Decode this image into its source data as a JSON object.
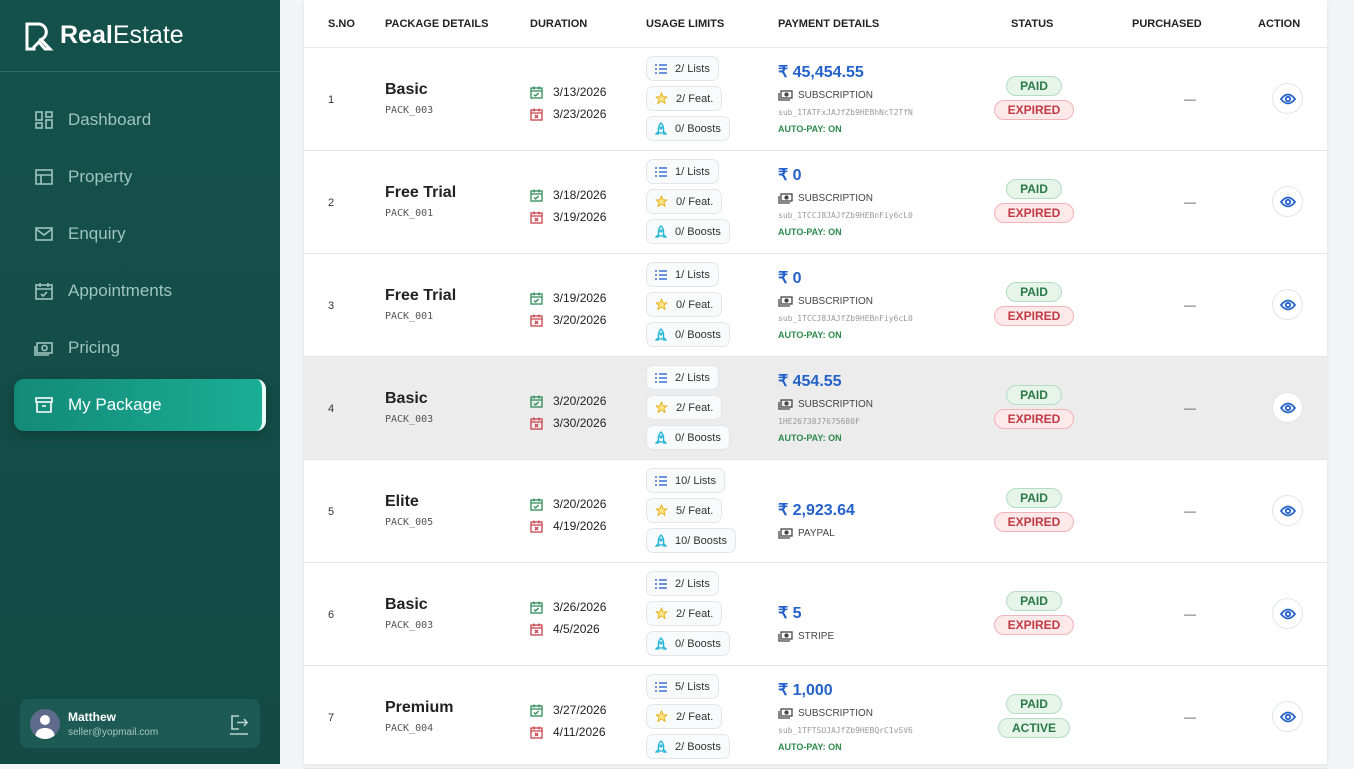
{
  "app": {
    "logo_bold": "Real",
    "logo_light": "Estate"
  },
  "sidebar": {
    "items": [
      {
        "label": "Dashboard",
        "icon": "dashboard-icon"
      },
      {
        "label": "Property",
        "icon": "property-icon"
      },
      {
        "label": "Enquiry",
        "icon": "mail-icon"
      },
      {
        "label": "Appointments",
        "icon": "calendar-icon"
      },
      {
        "label": "Pricing",
        "icon": "money-icon"
      },
      {
        "label": "My Package",
        "icon": "package-icon",
        "active": true
      }
    ]
  },
  "user": {
    "name": "Matthew",
    "email": "seller@yopmail.com"
  },
  "table": {
    "headers": [
      "S.NO",
      "PACKAGE DETAILS",
      "DURATION",
      "USAGE LIMITS",
      "PAYMENT DETAILS",
      "STATUS",
      "PURCHASED",
      "ACTION"
    ],
    "rows": [
      {
        "sno": "1",
        "name": "Basic",
        "code": "PACK_003",
        "start": "3/13/2026",
        "end": "3/23/2026",
        "lists": "2/ Lists",
        "feat": "2/ Feat.",
        "boosts": "0/ Boosts",
        "amount": "₹ 45,454.55",
        "method": "SUBSCRIPTION",
        "txn": "sub_1TATFxJAJfZb9HEBhNcT2TfN",
        "autopay": "AUTO-PAY: ON",
        "pay_status": "PAID",
        "status": "EXPIRED",
        "purchased": "—"
      },
      {
        "sno": "2",
        "name": "Free Trial",
        "code": "PACK_001",
        "start": "3/18/2026",
        "end": "3/19/2026",
        "lists": "1/ Lists",
        "feat": "0/ Feat.",
        "boosts": "0/ Boosts",
        "amount": "₹ 0",
        "method": "SUBSCRIPTION",
        "txn": "sub_1TCCJ8JAJfZb9HEBnFiy6cL0",
        "autopay": "AUTO-PAY: ON",
        "pay_status": "PAID",
        "status": "EXPIRED",
        "purchased": "—"
      },
      {
        "sno": "3",
        "name": "Free Trial",
        "code": "PACK_001",
        "start": "3/19/2026",
        "end": "3/20/2026",
        "lists": "1/ Lists",
        "feat": "0/ Feat.",
        "boosts": "0/ Boosts",
        "amount": "₹ 0",
        "method": "SUBSCRIPTION",
        "txn": "sub_1TCCJ8JAJfZb9HEBnFiy6cL0",
        "autopay": "AUTO-PAY: ON",
        "pay_status": "PAID",
        "status": "EXPIRED",
        "purchased": "—"
      },
      {
        "sno": "4",
        "name": "Basic",
        "code": "PACK_003",
        "start": "3/20/2026",
        "end": "3/30/2026",
        "lists": "2/ Lists",
        "feat": "2/ Feat.",
        "boosts": "0/ Boosts",
        "amount": "₹ 454.55",
        "method": "SUBSCRIPTION",
        "txn": "1HE26738J7675680F",
        "autopay": "AUTO-PAY: ON",
        "pay_status": "PAID",
        "status": "EXPIRED",
        "purchased": "—",
        "highlighted": true
      },
      {
        "sno": "5",
        "name": "Elite",
        "code": "PACK_005",
        "start": "3/20/2026",
        "end": "4/19/2026",
        "lists": "10/ Lists",
        "feat": "5/ Feat.",
        "boosts": "10/ Boosts",
        "amount": "₹ 2,923.64",
        "method": "PAYPAL",
        "pay_status": "PAID",
        "status": "EXPIRED",
        "purchased": "—"
      },
      {
        "sno": "6",
        "name": "Basic",
        "code": "PACK_003",
        "start": "3/26/2026",
        "end": "4/5/2026",
        "lists": "2/ Lists",
        "feat": "2/ Feat.",
        "boosts": "0/ Boosts",
        "amount": "₹ 5",
        "method": "STRIPE",
        "pay_status": "PAID",
        "status": "EXPIRED",
        "purchased": "—"
      },
      {
        "sno": "7",
        "name": "Premium",
        "code": "PACK_004",
        "start": "3/27/2026",
        "end": "4/11/2026",
        "lists": "5/ Lists",
        "feat": "2/ Feat.",
        "boosts": "2/ Boosts",
        "amount": "₹ 1,000",
        "method": "SUBSCRIPTION",
        "txn": "sub_1TFTSUJAJfZb9HEBQrC1vSV6",
        "autopay": "AUTO-PAY: ON",
        "pay_status": "PAID",
        "status": "ACTIVE",
        "purchased": "—"
      }
    ]
  },
  "colors": {
    "sidebar": "#14514b",
    "accent": "#1aae96",
    "amount": "#2461c9",
    "paid": "#2b7a46",
    "expired": "#c23a43"
  }
}
